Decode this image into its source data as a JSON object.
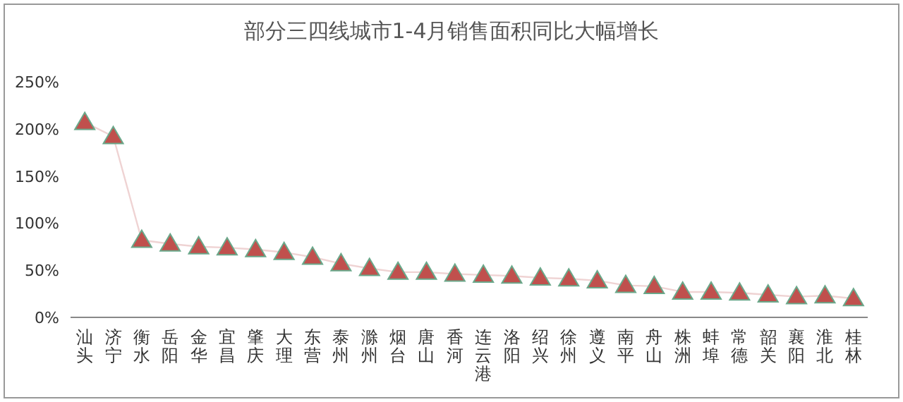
{
  "chart_data": {
    "type": "line",
    "title": "部分三四线城市1-4月销售面积同比大幅增长",
    "categories": [
      "汕头",
      "济宁",
      "衡水",
      "岳阳",
      "金华",
      "宜昌",
      "肇庆",
      "大理",
      "东营",
      "泰州",
      "滁州",
      "烟台",
      "唐山",
      "香河",
      "连云港",
      "洛阳",
      "绍兴",
      "徐州",
      "遵义",
      "南平",
      "舟山",
      "株洲",
      "蚌埠",
      "常德",
      "韶关",
      "襄阳",
      "淮北",
      "桂林"
    ],
    "series": [
      {
        "color": "#c0504d",
        "values": [
          207,
          192,
          82,
          78,
          75,
          74,
          72,
          69,
          64,
          57,
          52,
          48,
          48,
          46,
          45,
          44,
          42,
          41,
          39,
          34,
          33,
          27,
          27,
          26,
          24,
          22,
          23,
          20
        ]
      }
    ],
    "ylim": [
      0,
      250
    ],
    "yticks": [
      {
        "value": 0,
        "label": "0%"
      },
      {
        "value": 50,
        "label": "50%"
      },
      {
        "value": 100,
        "label": "100%"
      },
      {
        "value": 150,
        "label": "150%"
      },
      {
        "value": 200,
        "label": "200%"
      },
      {
        "value": 250,
        "label": "250%"
      }
    ],
    "marker": "triangle",
    "grid": false
  }
}
